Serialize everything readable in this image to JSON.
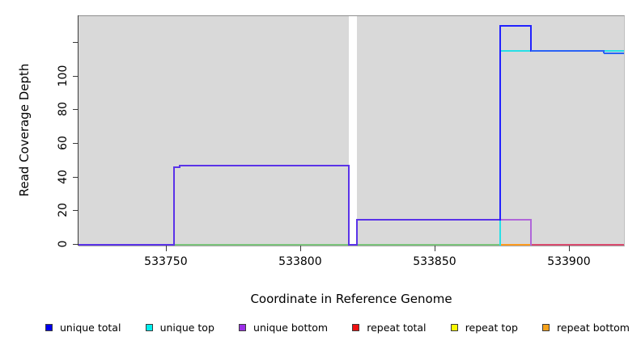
{
  "figure": {
    "y_axis_title": "Read Coverage Depth",
    "x_axis_title": "Coordinate in Reference Genome"
  },
  "chart_data": {
    "type": "line",
    "subtype": "step-coverage-plot",
    "title": "",
    "xlabel": "Coordinate in Reference Genome",
    "ylabel": "Read Coverage Depth",
    "x_range": [
      533717.5,
      533920.5
    ],
    "y_range": [
      0,
      136
    ],
    "grid": false,
    "legend_position": "bottom",
    "background_color": "#d9d9d9",
    "background_regions": [
      {
        "from": 533717.5,
        "to": 533818
      },
      {
        "from": 533821,
        "to": 533920.5
      }
    ],
    "gap_region": {
      "from": 533818,
      "to": 533821
    },
    "x_ticks": [
      {
        "value": 533750,
        "label": "533750"
      },
      {
        "value": 533800,
        "label": "533800"
      },
      {
        "value": 533850,
        "label": "533850"
      },
      {
        "value": 533900,
        "label": "533900"
      }
    ],
    "y_ticks": [
      {
        "value": 0,
        "label": "0"
      },
      {
        "value": 20,
        "label": "20"
      },
      {
        "value": 40,
        "label": "40"
      },
      {
        "value": 60,
        "label": "60"
      },
      {
        "value": 80,
        "label": "80"
      },
      {
        "value": 100,
        "label": "100"
      },
      {
        "value": 120,
        "label": ""
      }
    ],
    "legend": [
      {
        "label": "unique total",
        "color": "#0000ee"
      },
      {
        "label": "unique top",
        "color": "#00efef"
      },
      {
        "label": "unique bottom",
        "color": "#9b2fe8"
      },
      {
        "label": "repeat total",
        "color": "#ee1111"
      },
      {
        "label": "repeat top",
        "color": "#f8f800"
      },
      {
        "label": "repeat bottom",
        "color": "#f5a21b"
      }
    ],
    "series": [
      {
        "name": "unique total",
        "color": "#2222ff",
        "points": [
          [
            533717,
            0
          ],
          [
            533753,
            0
          ],
          [
            533753,
            46
          ],
          [
            533755,
            46
          ],
          [
            533755,
            47
          ],
          [
            533818,
            47
          ],
          [
            533818,
            0
          ],
          [
            533821,
            0
          ],
          [
            533821,
            15
          ],
          [
            533874,
            15
          ],
          [
            533874,
            130
          ],
          [
            533886,
            130
          ],
          [
            533886,
            115
          ],
          [
            533913,
            115
          ],
          [
            533913,
            114
          ],
          [
            533920,
            114
          ]
        ]
      },
      {
        "name": "unique top",
        "color": "#27dfe6",
        "points": [
          [
            533717,
            0
          ],
          [
            533874,
            0
          ],
          [
            533874,
            115
          ],
          [
            533913,
            115
          ],
          [
            533913,
            114
          ],
          [
            533920,
            114
          ]
        ]
      },
      {
        "name": "unique bottom",
        "color": "#9b2fe8",
        "points": [
          [
            533717,
            0
          ],
          [
            533753,
            0
          ],
          [
            533753,
            46
          ],
          [
            533755,
            46
          ],
          [
            533755,
            47
          ],
          [
            533818,
            47
          ],
          [
            533818,
            0
          ],
          [
            533821,
            0
          ],
          [
            533821,
            15
          ],
          [
            533886,
            15
          ],
          [
            533886,
            0
          ],
          [
            533920,
            0
          ]
        ]
      },
      {
        "name": "repeat total",
        "color": "#d94a6e",
        "points": [
          [
            533717,
            0
          ],
          [
            533920,
            0
          ]
        ]
      },
      {
        "name": "repeat top",
        "color": "#f8f800",
        "points": [
          [
            533717,
            0
          ],
          [
            533920,
            0
          ]
        ]
      },
      {
        "name": "repeat bottom",
        "color": "#ff9b1f",
        "points": [
          [
            533717,
            0
          ],
          [
            533920,
            0
          ]
        ]
      }
    ],
    "render_segments": [
      {
        "t": "h",
        "x1": 533753,
        "x2": 533874.4,
        "y": 0,
        "c": "#7cc47c"
      },
      {
        "t": "h",
        "x1": 533874.4,
        "x2": 533885.8,
        "y": 0,
        "c": "#ff9b1f"
      },
      {
        "t": "h",
        "x1": 533885.8,
        "x2": 533920.5,
        "y": 0,
        "c": "#d94a6e"
      },
      {
        "t": "h",
        "x1": 533717.5,
        "x2": 533753,
        "y": 0,
        "c": "#5a33e8"
      },
      {
        "t": "v",
        "x": 533753,
        "y1": 0,
        "y2": 46,
        "c": "#5a33e8"
      },
      {
        "t": "h",
        "x1": 533753,
        "x2": 533755,
        "y": 46,
        "c": "#5a33e8"
      },
      {
        "t": "v",
        "x": 533755,
        "y1": 46,
        "y2": 47,
        "c": "#5a33e8"
      },
      {
        "t": "h",
        "x1": 533755,
        "x2": 533818,
        "y": 47,
        "c": "#5a33e8"
      },
      {
        "t": "v",
        "x": 533818,
        "y1": 0,
        "y2": 47,
        "c": "#5a33e8"
      },
      {
        "t": "h",
        "x1": 533818,
        "x2": 533821,
        "y": 0,
        "c": "#5a33e8"
      },
      {
        "t": "v",
        "x": 533821,
        "y1": 0,
        "y2": 15,
        "c": "#5a33e8"
      },
      {
        "t": "h",
        "x1": 533821,
        "x2": 533874.4,
        "y": 15,
        "c": "#5a33e8"
      },
      {
        "t": "v",
        "x": 533874.4,
        "y1": 0,
        "y2": 115,
        "c": "#27dfe6"
      },
      {
        "t": "h",
        "x1": 533874.4,
        "x2": 533920.5,
        "y": 115,
        "c": "#27dfe6"
      },
      {
        "t": "h",
        "x1": 533874.4,
        "x2": 533885.8,
        "y": 15,
        "c": "#b066d9"
      },
      {
        "t": "v",
        "x": 533885.8,
        "y1": 0,
        "y2": 15,
        "c": "#b066d9"
      },
      {
        "t": "v",
        "x": 533874.4,
        "y1": 15,
        "y2": 130,
        "c": "#2222ff"
      },
      {
        "t": "h",
        "x1": 533874.4,
        "x2": 533885.8,
        "y": 130,
        "c": "#2222ff"
      },
      {
        "t": "v",
        "x": 533885.8,
        "y1": 115,
        "y2": 130,
        "c": "#2222ff"
      },
      {
        "t": "h",
        "x1": 533885.8,
        "x2": 533913,
        "y": 115,
        "c": "#2a62f5"
      },
      {
        "t": "v",
        "x": 533913,
        "y1": 114,
        "y2": 115,
        "c": "#2a62f5"
      },
      {
        "t": "h",
        "x1": 533913,
        "x2": 533920.5,
        "y": 114,
        "c": "#2a62f5"
      }
    ]
  }
}
